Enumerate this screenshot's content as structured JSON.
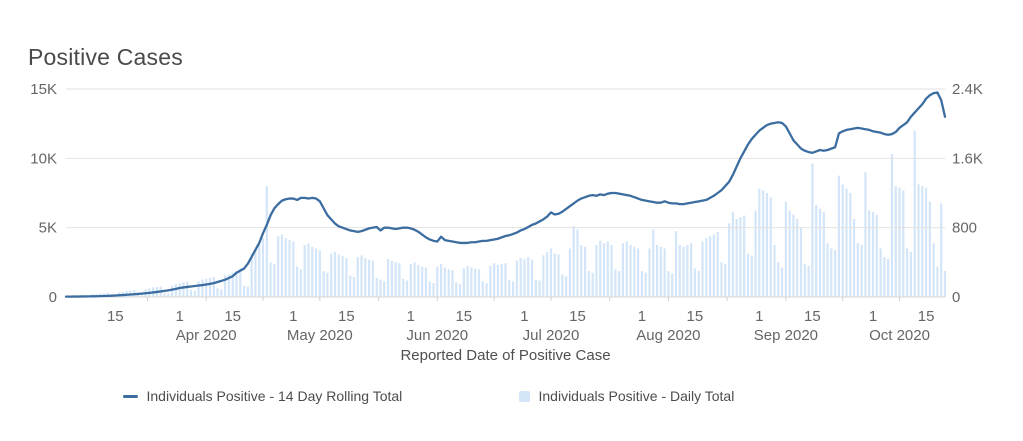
{
  "chart_data": {
    "type": "composite",
    "title": "Positive Cases",
    "xlabel": "Reported Date of Positive Case",
    "x_start_date": "2020-03-02",
    "x_end_date": "2020-10-20",
    "grid": true,
    "legend_position": "bottom",
    "axes": {
      "left": {
        "range": [
          0,
          15000
        ],
        "ticks": [
          {
            "label": "0",
            "value": 0
          },
          {
            "label": "5K",
            "value": 5000
          },
          {
            "label": "10K",
            "value": 10000
          },
          {
            "label": "15K",
            "value": 15000
          }
        ]
      },
      "right": {
        "range": [
          0,
          2400
        ],
        "ticks": [
          {
            "label": "0",
            "value": 0
          },
          {
            "label": "800",
            "value": 800
          },
          {
            "label": "1.6K",
            "value": 1600
          },
          {
            "label": "2.4K",
            "value": 2400
          }
        ]
      }
    },
    "x_ticks": [
      {
        "label": "15",
        "day": 13
      },
      {
        "label": "1",
        "day": 30
      },
      {
        "label": "15",
        "day": 44
      },
      {
        "label": "1",
        "day": 60
      },
      {
        "label": "15",
        "day": 74
      },
      {
        "label": "1",
        "day": 91
      },
      {
        "label": "15",
        "day": 105
      },
      {
        "label": "1",
        "day": 121
      },
      {
        "label": "15",
        "day": 135
      },
      {
        "label": "1",
        "day": 152
      },
      {
        "label": "15",
        "day": 166
      },
      {
        "label": "1",
        "day": 183
      },
      {
        "label": "15",
        "day": 197
      },
      {
        "label": "1",
        "day": 213
      },
      {
        "label": "15",
        "day": 227
      }
    ],
    "x_months": [
      {
        "label": "Apr 2020",
        "day": 37
      },
      {
        "label": "May 2020",
        "day": 67
      },
      {
        "label": "Jun 2020",
        "day": 98
      },
      {
        "label": "Jul 2020",
        "day": 128
      },
      {
        "label": "Aug 2020",
        "day": 159
      },
      {
        "label": "Sep 2020",
        "day": 190
      },
      {
        "label": "Oct 2020",
        "day": 220
      }
    ],
    "series": [
      {
        "name": "Individuals Positive - 14 Day Rolling Total",
        "type": "line",
        "axis": "left",
        "color": "#3c6da0",
        "values": [
          25,
          28,
          30,
          33,
          36,
          40,
          45,
          50,
          55,
          62,
          70,
          80,
          95,
          110,
          125,
          140,
          160,
          180,
          200,
          220,
          245,
          270,
          300,
          330,
          365,
          400,
          440,
          480,
          530,
          590,
          650,
          690,
          725,
          760,
          795,
          830,
          860,
          900,
          950,
          1000,
          1080,
          1160,
          1250,
          1370,
          1500,
          1750,
          1900,
          2050,
          2400,
          2900,
          3400,
          3900,
          4600,
          5200,
          5900,
          6400,
          6700,
          6950,
          7050,
          7100,
          7100,
          7000,
          7150,
          7150,
          7100,
          7150,
          7100,
          6900,
          6400,
          5900,
          5600,
          5300,
          5100,
          5000,
          4900,
          4800,
          4750,
          4700,
          4750,
          4850,
          4950,
          5000,
          5050,
          4800,
          5000,
          5000,
          4950,
          4900,
          4950,
          5000,
          5000,
          4950,
          4850,
          4700,
          4500,
          4300,
          4150,
          4050,
          4000,
          4350,
          4100,
          4050,
          4000,
          3950,
          3900,
          3900,
          3900,
          3950,
          3950,
          4000,
          4050,
          4050,
          4100,
          4150,
          4200,
          4300,
          4400,
          4450,
          4550,
          4650,
          4800,
          4900,
          5050,
          5200,
          5300,
          5450,
          5600,
          5800,
          6100,
          5950,
          6000,
          6150,
          6350,
          6550,
          6750,
          6950,
          7100,
          7200,
          7300,
          7350,
          7300,
          7400,
          7350,
          7450,
          7500,
          7500,
          7450,
          7400,
          7350,
          7300,
          7200,
          7100,
          7000,
          6950,
          6900,
          6850,
          6800,
          6800,
          6900,
          6800,
          6750,
          6750,
          6700,
          6700,
          6750,
          6800,
          6850,
          6900,
          6950,
          7000,
          7150,
          7300,
          7500,
          7700,
          8000,
          8300,
          8800,
          9400,
          10000,
          10500,
          11000,
          11400,
          11700,
          12000,
          12200,
          12400,
          12500,
          12550,
          12600,
          12550,
          12300,
          11800,
          11300,
          11000,
          10700,
          10550,
          10450,
          10400,
          10500,
          10600,
          10550,
          10600,
          10700,
          10800,
          11800,
          11950,
          12050,
          12100,
          12150,
          12200,
          12150,
          12100,
          12050,
          11950,
          11900,
          11850,
          11750,
          11700,
          11750,
          11900,
          12200,
          12400,
          12600,
          13000,
          13300,
          13600,
          13900,
          14300,
          14550,
          14700,
          14750,
          14200,
          13000
        ]
      },
      {
        "name": "Individuals Positive - Daily Total",
        "type": "bar",
        "axis": "right",
        "color": "#d3e5f8",
        "values": [
          10,
          12,
          15,
          20,
          25,
          10,
          8,
          30,
          35,
          40,
          45,
          50,
          20,
          15,
          55,
          60,
          70,
          75,
          80,
          30,
          25,
          90,
          100,
          110,
          115,
          120,
          45,
          40,
          130,
          150,
          160,
          170,
          175,
          80,
          70,
          180,
          200,
          210,
          220,
          230,
          100,
          90,
          250,
          260,
          280,
          300,
          330,
          130,
          120,
          500,
          560,
          620,
          680,
          1280,
          400,
          380,
          700,
          720,
          680,
          660,
          640,
          350,
          320,
          600,
          620,
          580,
          560,
          540,
          300,
          280,
          500,
          520,
          490,
          470,
          450,
          250,
          230,
          460,
          480,
          450,
          430,
          420,
          220,
          200,
          180,
          440,
          420,
          400,
          390,
          210,
          190,
          380,
          400,
          370,
          350,
          340,
          180,
          160,
          350,
          380,
          340,
          320,
          310,
          170,
          150,
          330,
          360,
          340,
          330,
          320,
          180,
          160,
          360,
          390,
          370,
          380,
          390,
          200,
          180,
          420,
          450,
          440,
          460,
          430,
          200,
          190,
          480,
          520,
          560,
          500,
          490,
          260,
          240,
          560,
          820,
          780,
          600,
          580,
          300,
          280,
          600,
          650,
          620,
          640,
          600,
          320,
          300,
          620,
          640,
          600,
          580,
          560,
          300,
          280,
          560,
          780,
          600,
          580,
          560,
          300,
          270,
          760,
          600,
          580,
          600,
          620,
          330,
          300,
          640,
          680,
          700,
          720,
          750,
          400,
          380,
          850,
          980,
          900,
          920,
          940,
          500,
          480,
          1000,
          1250,
          1230,
          1200,
          1150,
          600,
          400,
          340,
          1100,
          1000,
          950,
          900,
          800,
          380,
          360,
          1540,
          1060,
          1020,
          980,
          620,
          560,
          540,
          1400,
          1300,
          1250,
          1200,
          900,
          620,
          600,
          1440,
          1000,
          980,
          950,
          560,
          460,
          440,
          1650,
          1280,
          1260,
          1230,
          560,
          520,
          1920,
          1300,
          1280,
          1260,
          1100,
          620,
          350,
          1080,
          300
        ]
      }
    ],
    "style": {
      "gridline_color": "#e2e2e2",
      "baseline_color": "#d6d6d6",
      "tick_color": "#cfcfcf",
      "axis_text_color": "#666666"
    }
  }
}
